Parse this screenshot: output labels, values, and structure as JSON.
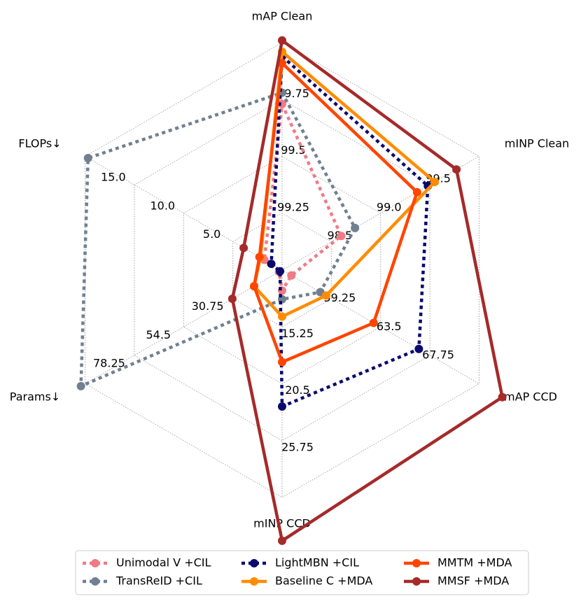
{
  "chart_data": {
    "type": "radar",
    "axes": [
      {
        "name": "mAP Clean",
        "ticks": [
          "99.25",
          "99.5",
          "99.75"
        ]
      },
      {
        "name": "mINP Clean",
        "ticks": [
          "98.5",
          "99.0",
          "99.5"
        ]
      },
      {
        "name": "mAP CCD",
        "ticks": [
          "59.25",
          "63.5",
          "67.75"
        ]
      },
      {
        "name": "mINP CCD",
        "ticks": [
          "15.25",
          "20.5",
          "25.75"
        ]
      },
      {
        "name": "Params↓",
        "ticks": [
          "30.75",
          "54.5",
          "78.25"
        ]
      },
      {
        "name": "FLOPs↓",
        "ticks": [
          "5.0",
          "10.0",
          "15.0"
        ]
      }
    ],
    "series": [
      {
        "name": "Unimodal V +CIL",
        "color": "#f07a86",
        "style": "dotted",
        "values": [
          99.73,
          98.6,
          55.8,
          11.9,
          8.5,
          1.8
        ]
      },
      {
        "name": "TransReID +CIL",
        "color": "#708090",
        "style": "dotted",
        "values": [
          99.78,
          98.74,
          58.3,
          12.7,
          104.0,
          19.7
        ]
      },
      {
        "name": "LightMBN +CIL",
        "color": "#0a0a6e",
        "style": "dotted",
        "values": [
          99.94,
          99.48,
          66.8,
          22.6,
          8.0,
          1.1
        ]
      },
      {
        "name": "Baseline C +MDA",
        "color": "#ff8c00",
        "style": "solid",
        "values": [
          99.96,
          99.55,
          58.8,
          14.3,
          20.5,
          2.2
        ]
      },
      {
        "name": "MMTM +MDA",
        "color": "#ff4500",
        "style": "solid",
        "values": [
          99.91,
          99.37,
          62.9,
          18.5,
          20.5,
          2.3
        ]
      },
      {
        "name": "MMSF +MDA",
        "color": "#a52a2a",
        "style": "solid",
        "values": [
          100.01,
          99.77,
          74.0,
          35.0,
          31.0,
          3.9
        ]
      }
    ],
    "legend": "bottom-center",
    "grid": true
  }
}
